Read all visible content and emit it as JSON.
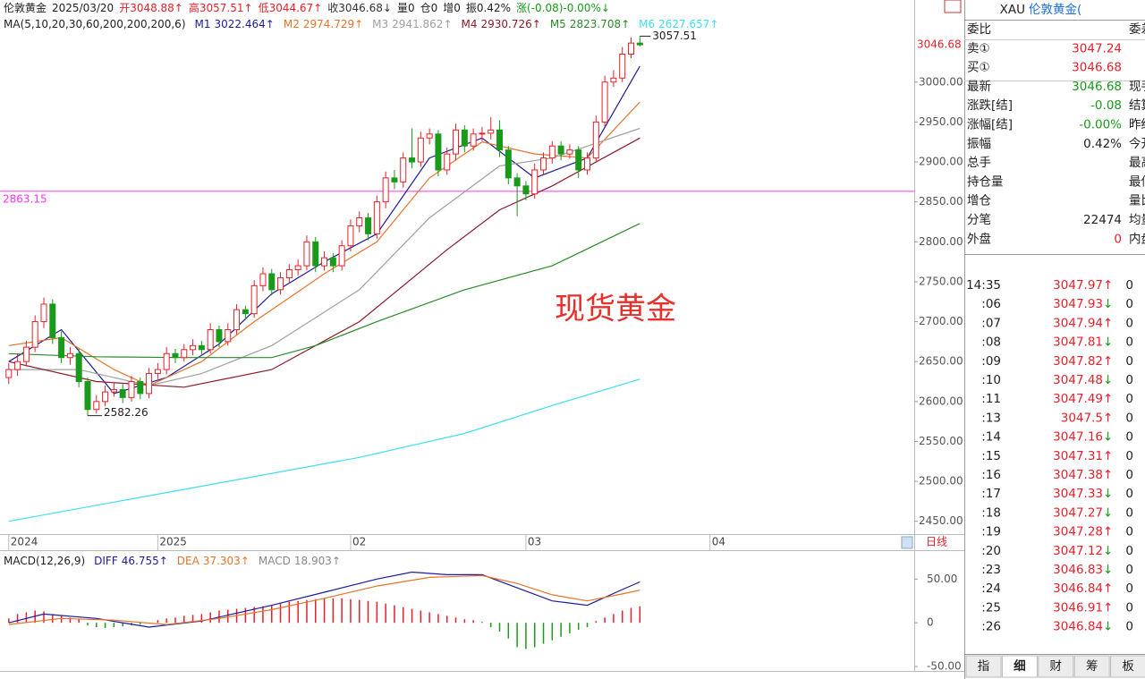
{
  "header": {
    "items": [
      {
        "text": "伦敦黄金",
        "color": "#222"
      },
      {
        "text": "2025/03/20",
        "color": "#222"
      },
      {
        "text": "开3048.88↑",
        "color": "#e8202a"
      },
      {
        "text": "高3057.51↑",
        "color": "#e8202a"
      },
      {
        "text": "低3044.67↑",
        "color": "#e8202a"
      },
      {
        "text": "收3046.68↓",
        "color": "#333"
      },
      {
        "text": "量0",
        "color": "#222"
      },
      {
        "text": "仓0",
        "color": "#222"
      },
      {
        "text": "增0",
        "color": "#222"
      },
      {
        "text": "振0.42%",
        "color": "#222"
      },
      {
        "text": "涨(-0.08)-0.00%↓",
        "color": "#1a9a1a"
      }
    ]
  },
  "chart_data": [
    {
      "type": "candlestick",
      "ma_label": "MA(5,10,20,30,60,200,200,200,6)",
      "colors": {
        "up": "#e8202a",
        "down": "#1a9a1a"
      },
      "xlim": [
        -1,
        103.3
      ],
      "ylim": [
        2434,
        3086
      ],
      "xticks": [
        {
          "value": 0,
          "label": "2024"
        },
        {
          "value": 17,
          "label": "2025"
        },
        {
          "value": 39,
          "label": "02"
        },
        {
          "value": 59,
          "label": "03"
        },
        {
          "value": 80,
          "label": "04"
        }
      ],
      "yticks": [
        {
          "value": 2450,
          "label": "2450.00"
        },
        {
          "value": 2500,
          "label": "2500.00"
        },
        {
          "value": 2550,
          "label": "2550.00"
        },
        {
          "value": 2600,
          "label": "2600.00"
        },
        {
          "value": 2650,
          "label": "2650.00"
        },
        {
          "value": 2700,
          "label": "2700.00"
        },
        {
          "value": 2750,
          "label": "2750.00"
        },
        {
          "value": 2800,
          "label": "2800.00"
        },
        {
          "value": 2850,
          "label": "2850.00"
        },
        {
          "value": 2900,
          "label": "2900.00"
        },
        {
          "value": 2950,
          "label": "2950.00"
        },
        {
          "value": 3000,
          "label": "3000.00"
        }
      ],
      "grid": false,
      "candles": [
        [
          2630,
          2648,
          2622,
          2640
        ],
        [
          2640,
          2660,
          2632,
          2650
        ],
        [
          2650,
          2676,
          2644,
          2668
        ],
        [
          2668,
          2708,
          2662,
          2700
        ],
        [
          2700,
          2730,
          2692,
          2722
        ],
        [
          2722,
          2728,
          2672,
          2680
        ],
        [
          2680,
          2688,
          2648,
          2655
        ],
        [
          2655,
          2668,
          2646,
          2660
        ],
        [
          2660,
          2666,
          2618,
          2625
        ],
        [
          2625,
          2630,
          2582.26,
          2590
        ],
        [
          2590,
          2608,
          2585,
          2600
        ],
        [
          2600,
          2620,
          2594,
          2612
        ],
        [
          2612,
          2624,
          2606,
          2615
        ],
        [
          2615,
          2622,
          2598,
          2605
        ],
        [
          2605,
          2632,
          2600,
          2625
        ],
        [
          2625,
          2630,
          2603,
          2610
        ],
        [
          2610,
          2642,
          2604,
          2635
        ],
        [
          2635,
          2648,
          2628,
          2640
        ],
        [
          2640,
          2668,
          2634,
          2660
        ],
        [
          2660,
          2666,
          2648,
          2655
        ],
        [
          2655,
          2672,
          2650,
          2665
        ],
        [
          2665,
          2678,
          2658,
          2670
        ],
        [
          2670,
          2676,
          2658,
          2665
        ],
        [
          2665,
          2698,
          2660,
          2690
        ],
        [
          2690,
          2695,
          2668,
          2675
        ],
        [
          2675,
          2698,
          2670,
          2690
        ],
        [
          2690,
          2722,
          2684,
          2715
        ],
        [
          2715,
          2720,
          2702,
          2710
        ],
        [
          2710,
          2752,
          2705,
          2745
        ],
        [
          2745,
          2768,
          2738,
          2760
        ],
        [
          2760,
          2766,
          2733,
          2740
        ],
        [
          2740,
          2762,
          2734,
          2755
        ],
        [
          2755,
          2772,
          2748,
          2765
        ],
        [
          2765,
          2778,
          2758,
          2770
        ],
        [
          2770,
          2808,
          2764,
          2800
        ],
        [
          2800,
          2806,
          2762,
          2770
        ],
        [
          2770,
          2788,
          2764,
          2780
        ],
        [
          2780,
          2786,
          2762,
          2770
        ],
        [
          2770,
          2802,
          2764,
          2795
        ],
        [
          2795,
          2828,
          2788,
          2820
        ],
        [
          2820,
          2838,
          2812,
          2830
        ],
        [
          2830,
          2836,
          2802,
          2810
        ],
        [
          2810,
          2858,
          2804,
          2850
        ],
        [
          2850,
          2888,
          2842,
          2880
        ],
        [
          2880,
          2890,
          2866,
          2875
        ],
        [
          2875,
          2912,
          2868,
          2905
        ],
        [
          2905,
          2942,
          2892,
          2900
        ],
        [
          2900,
          2938,
          2894,
          2930
        ],
        [
          2930,
          2942,
          2922,
          2935
        ],
        [
          2935,
          2940,
          2882,
          2890
        ],
        [
          2890,
          2918,
          2884,
          2910
        ],
        [
          2910,
          2948,
          2902,
          2940
        ],
        [
          2940,
          2946,
          2912,
          2920
        ],
        [
          2920,
          2942,
          2914,
          2935
        ],
        [
          2935,
          2944,
          2926,
          2936
        ],
        [
          2936,
          2956,
          2928,
          2940
        ],
        [
          2940,
          2952,
          2906,
          2915
        ],
        [
          2915,
          2920,
          2872,
          2880
        ],
        [
          2880,
          2886,
          2832,
          2870
        ],
        [
          2870,
          2876,
          2852,
          2860
        ],
        [
          2860,
          2898,
          2854,
          2890
        ],
        [
          2890,
          2912,
          2884,
          2905
        ],
        [
          2905,
          2926,
          2898,
          2920
        ],
        [
          2920,
          2926,
          2902,
          2910
        ],
        [
          2910,
          2922,
          2904,
          2915
        ],
        [
          2915,
          2920,
          2880,
          2890
        ],
        [
          2890,
          2912,
          2884,
          2905
        ],
        [
          2905,
          2958,
          2900,
          2950
        ],
        [
          2950,
          3008,
          2944,
          3000
        ],
        [
          3000,
          3015,
          2994,
          3005
        ],
        [
          3005,
          3044,
          3000,
          3035
        ],
        [
          3035,
          3056,
          3030,
          3048.88
        ],
        [
          3048.88,
          3057.51,
          3044.67,
          3046.68
        ]
      ],
      "series": [
        {
          "name": "M1",
          "last": 3022.464,
          "trend": "↑",
          "color": "#1c1c9c",
          "x": [
            0,
            6,
            12,
            18,
            24,
            30,
            36,
            42,
            48,
            54,
            60,
            66,
            72
          ],
          "values": [
            2650,
            2690,
            2610,
            2630,
            2672,
            2735,
            2775,
            2810,
            2905,
            2930,
            2880,
            2905,
            3020
          ]
        },
        {
          "name": "M2",
          "last": 2974.729,
          "trend": "↑",
          "color": "#e8742a",
          "x": [
            0,
            6,
            12,
            16,
            22,
            28,
            36,
            42,
            48,
            54,
            60,
            66,
            72
          ],
          "values": [
            2670,
            2680,
            2640,
            2620,
            2650,
            2700,
            2760,
            2800,
            2880,
            2925,
            2910,
            2905,
            2975
          ]
        },
        {
          "name": "M3",
          "last": 2941.862,
          "trend": "↑",
          "color": "#a0a0a0",
          "x": [
            0,
            8,
            16,
            22,
            30,
            40,
            48,
            56,
            62,
            72
          ],
          "values": [
            2640,
            2640,
            2620,
            2635,
            2670,
            2740,
            2830,
            2895,
            2905,
            2942
          ]
        },
        {
          "name": "M4",
          "last": 2930.726,
          "trend": "↑",
          "color": "#8b1a2a",
          "x": [
            0,
            10,
            20,
            30,
            40,
            50,
            56,
            62,
            72
          ],
          "values": [
            2650,
            2625,
            2618,
            2640,
            2700,
            2790,
            2840,
            2870,
            2930
          ]
        },
        {
          "name": "M5",
          "last": 2823.708,
          "trend": "↑",
          "color": "#2a8a2a",
          "x": [
            0,
            10,
            20,
            30,
            35,
            42,
            52,
            62,
            72
          ],
          "values": [
            2660,
            2656,
            2655,
            2655,
            2670,
            2700,
            2740,
            2770,
            2823
          ]
        },
        {
          "name": "M6",
          "last": 2627.657,
          "trend": "↑",
          "color": "#3de0f0",
          "x": [
            0,
            25,
            40,
            52,
            62,
            72
          ],
          "values": [
            2450,
            2500,
            2530,
            2560,
            2595,
            2628
          ]
        }
      ],
      "high_label": {
        "x": 72,
        "value": 3057.51
      },
      "low_label": {
        "x": 9,
        "value": 2582.26
      },
      "hline": {
        "value": 2863.15,
        "color": "#ff33ff"
      },
      "last_price": 3046.68,
      "watermark": "现货黄金",
      "period": "日线"
    },
    {
      "type": "macd",
      "title": "MACD(12,26,9)",
      "colors": {
        "up": "#e8202a",
        "down": "#1a9a1a"
      },
      "ylim": [
        -50,
        80
      ],
      "yticks": [
        {
          "value": 50,
          "label": "50.00"
        },
        0,
        {
          "value": -50,
          "label": "-50.00"
        }
      ],
      "series": [
        {
          "name": "DIFF",
          "last": 46.755,
          "trend": "↑",
          "color": "#1c1c9c",
          "x": [
            0,
            4,
            10,
            16,
            22,
            30,
            36,
            42,
            46,
            50,
            54,
            58,
            62,
            66,
            70,
            72
          ],
          "values": [
            0,
            10,
            5,
            -5,
            2,
            20,
            35,
            50,
            58,
            55,
            55,
            40,
            25,
            20,
            38,
            46.755
          ]
        },
        {
          "name": "DEA",
          "last": 37.303,
          "trend": "↑",
          "color": "#e8742a",
          "x": [
            0,
            6,
            12,
            18,
            24,
            30,
            36,
            42,
            48,
            54,
            58,
            62,
            66,
            70,
            72
          ],
          "values": [
            -2,
            5,
            3,
            -2,
            5,
            15,
            28,
            42,
            52,
            54,
            45,
            32,
            25,
            33,
            37.303
          ]
        }
      ],
      "hist": {
        "name": "MACD",
        "last": 18.903,
        "trend": "↑",
        "color": "#888",
        "values": [
          5,
          10,
          12,
          14,
          13,
          10,
          8,
          6,
          4,
          -3,
          -5,
          -6,
          -5,
          -4,
          -3,
          -2,
          -1,
          3,
          5,
          6,
          8,
          9,
          10,
          12,
          14,
          15,
          16,
          17,
          18,
          19,
          20,
          22,
          24,
          25,
          26,
          27,
          28,
          28,
          28,
          27,
          26,
          25,
          24,
          22,
          20,
          18,
          16,
          14,
          12,
          10,
          8,
          6,
          4,
          3,
          1,
          -5,
          -10,
          -18,
          -28,
          -30,
          -28,
          -24,
          -20,
          -16,
          -12,
          -8,
          -5,
          2,
          6,
          10,
          14,
          17,
          18.903
        ]
      }
    }
  ],
  "quote": {
    "symbol": "XAU",
    "name": "伦敦黄金(",
    "rows": [
      {
        "label": "委比",
        "right": "委差"
      },
      {
        "label": "卖①",
        "value": 3047.24,
        "color": "#e8202a"
      },
      {
        "label": "买①",
        "value": 3046.68,
        "color": "#e8202a"
      },
      {
        "label": "最新",
        "value": 3046.68,
        "color": "#1a9a1a",
        "right": "现手"
      },
      {
        "label": "涨跌[结]",
        "value": -0.08,
        "color": "#1a9a1a",
        "right": "结算价"
      },
      {
        "label": "涨幅[结]",
        "value": "-0.00%",
        "color": "#1a9a1a",
        "right": "昨结算"
      },
      {
        "label": "振幅",
        "value": "0.42%",
        "color": "#222",
        "right": "今开"
      },
      {
        "label": "总手",
        "right": "最高"
      },
      {
        "label": "持仓量",
        "right": "最低"
      },
      {
        "label": "增仓",
        "right": "量比"
      },
      {
        "label": "分笔",
        "value": 22474,
        "color": "#222",
        "right": "均量"
      },
      {
        "label": "外盘",
        "value": 0,
        "color": "#e8202a",
        "right": "内盘"
      }
    ],
    "arrow_colors": {
      "↑": "#e8202a",
      "↓": "#1a9a1a"
    },
    "ticks": [
      {
        "time": "14:35",
        "price": 3047.97,
        "dir": "↑",
        "vol": 0
      },
      {
        "time": ":06",
        "price": 3047.93,
        "dir": "↓",
        "vol": 0
      },
      {
        "time": ":07",
        "price": 3047.94,
        "dir": "↑",
        "vol": 0
      },
      {
        "time": ":08",
        "price": 3047.81,
        "dir": "↓",
        "vol": 0
      },
      {
        "time": ":09",
        "price": 3047.82,
        "dir": "↑",
        "vol": 0
      },
      {
        "time": ":10",
        "price": 3047.48,
        "dir": "↓",
        "vol": 0
      },
      {
        "time": ":11",
        "price": 3047.49,
        "dir": "↑",
        "vol": 0
      },
      {
        "time": ":13",
        "price": 3047.5,
        "dir": "↑",
        "vol": 0
      },
      {
        "time": ":14",
        "price": 3047.16,
        "dir": "↓",
        "vol": 0
      },
      {
        "time": ":15",
        "price": 3047.31,
        "dir": "↑",
        "vol": 0
      },
      {
        "time": ":16",
        "price": 3047.38,
        "dir": "↑",
        "vol": 0
      },
      {
        "time": ":17",
        "price": 3047.33,
        "dir": "↓",
        "vol": 0
      },
      {
        "time": ":18",
        "price": 3047.27,
        "dir": "↓",
        "vol": 0
      },
      {
        "time": ":19",
        "price": 3047.28,
        "dir": "↑",
        "vol": 0
      },
      {
        "time": ":20",
        "price": 3047.12,
        "dir": "↓",
        "vol": 0
      },
      {
        "time": ":23",
        "price": 3046.83,
        "dir": "↓",
        "vol": 0
      },
      {
        "time": ":24",
        "price": 3046.84,
        "dir": "↑",
        "vol": 0
      },
      {
        "time": ":25",
        "price": 3046.91,
        "dir": "↑",
        "vol": 0
      },
      {
        "time": ":26",
        "price": 3046.84,
        "dir": "↓",
        "vol": 0
      }
    ],
    "tabs": [
      "指",
      "细",
      "财",
      "筹",
      "板"
    ],
    "active_tab": 1
  }
}
